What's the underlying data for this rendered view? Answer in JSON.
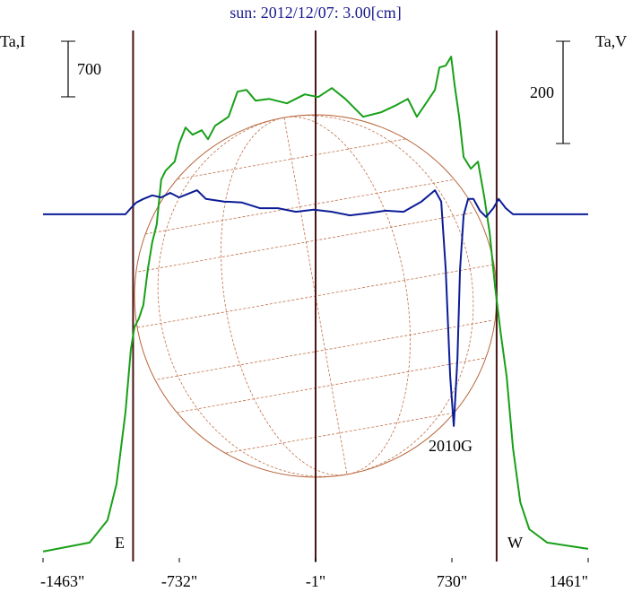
{
  "chart_data": {
    "type": "line",
    "title": "sun: 2012/12/07: 3.00[cm]",
    "y_label": "Ta,I",
    "y2_label": "Ta,V",
    "xlim": [
      -1463,
      1461
    ],
    "xticks": [
      {
        "value": -1463,
        "label": "-1463\""
      },
      {
        "value": -732,
        "label": "-732\""
      },
      {
        "value": -1,
        "label": "-1\""
      },
      {
        "value": 730,
        "label": "730\""
      },
      {
        "value": 1461,
        "label": "1461\""
      }
    ],
    "ylim": [
      -80,
      6630
    ],
    "y2lim": [
      -672,
      370
    ],
    "scale_bars": [
      700,
      200
    ],
    "vlines": [
      -980,
      -1,
      970
    ],
    "annotations": [
      "E",
      "W",
      "2010G"
    ],
    "series": [
      {
        "name": "Ta,I",
        "color": "#18a018",
        "axis": "y",
        "x": [
          -1463,
          -1213,
          -1117,
          -1069,
          -1021,
          -992,
          -973,
          -949,
          -925,
          -901,
          -877,
          -853,
          -829,
          -805,
          -757,
          -733,
          -699,
          -661,
          -612,
          -578,
          -540,
          -468,
          -420,
          -372,
          -323,
          -251,
          -155,
          -59,
          13,
          86,
          158,
          254,
          350,
          422,
          494,
          542,
          591,
          639,
          663,
          697,
          726,
          745,
          769,
          793,
          832,
          870,
          904,
          933,
          962,
          991,
          1024,
          1058,
          1097,
          1145,
          1241,
          1461
        ],
        "values": [
          0,
          113,
          395,
          847,
          1750,
          2540,
          2822,
          2935,
          3105,
          3556,
          3895,
          4121,
          4685,
          4798,
          4911,
          5137,
          5340,
          5250,
          5306,
          5193,
          5363,
          5476,
          5792,
          5814,
          5679,
          5701,
          5645,
          5758,
          5724,
          5837,
          5701,
          5476,
          5532,
          5611,
          5701,
          5476,
          5645,
          5814,
          6097,
          6119,
          6232,
          5871,
          5476,
          4968,
          4821,
          4911,
          4460,
          4008,
          3331,
          2766,
          2202,
          1298,
          621,
          282,
          113,
          34
        ]
      },
      {
        "name": "Ta,V",
        "color": "#0c1c96",
        "axis": "y2",
        "x": [
          -1463,
          -1021,
          -992,
          -963,
          -925,
          -877,
          -829,
          -781,
          -733,
          -685,
          -637,
          -589,
          -492,
          -396,
          -300,
          -203,
          -107,
          -11,
          86,
          182,
          278,
          375,
          471,
          567,
          639,
          673,
          697,
          721,
          740,
          760,
          774,
          793,
          817,
          846,
          880,
          913,
          952,
          981,
          1019,
          1058,
          1461
        ],
        "values": [
          0,
          0,
          12,
          23,
          30,
          37,
          33,
          42,
          33,
          40,
          47,
          30,
          25,
          23,
          12,
          12,
          5,
          9,
          5,
          -2,
          2,
          7,
          5,
          25,
          47,
          25,
          -107,
          -317,
          -414,
          -282,
          -107,
          -2,
          30,
          30,
          7,
          -5,
          12,
          30,
          12,
          0,
          0
        ]
      }
    ]
  }
}
